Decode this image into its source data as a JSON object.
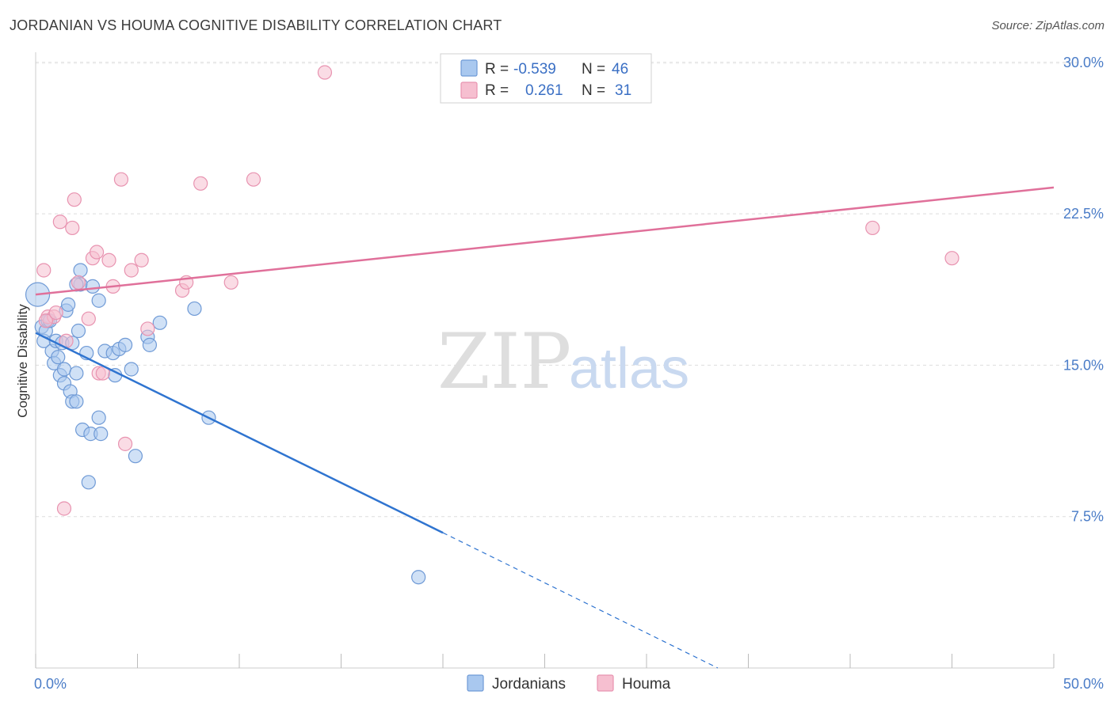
{
  "title": "JORDANIAN VS HOUMA COGNITIVE DISABILITY CORRELATION CHART",
  "source": "Source: ZipAtlas.com",
  "watermark": {
    "zip": "ZIP",
    "atlas": "atlas"
  },
  "colors": {
    "blue_fill": "#a9c8ef",
    "blue_stroke": "#6f9ad6",
    "blue_line": "#2f74d0",
    "pink_fill": "#f6bfd0",
    "pink_stroke": "#e893b0",
    "pink_line": "#e0709a",
    "grid": "#dddddd",
    "tick_text": "#4a7cc7"
  },
  "legend": {
    "rows": [
      {
        "r_label": "R =",
        "r_value": "-0.539",
        "n_label": "N =",
        "n_value": "46"
      },
      {
        "r_label": "R =",
        "r_value": "0.261",
        "n_label": "N =",
        "n_value": "31"
      }
    ]
  },
  "chart_data": {
    "type": "scatter",
    "title": "JORDANIAN VS HOUMA COGNITIVE DISABILITY CORRELATION CHART",
    "xlabel": "",
    "ylabel": "Cognitive Disability",
    "xlim": [
      0,
      50
    ],
    "ylim": [
      0,
      30.5
    ],
    "x_tick_labels": [
      "0.0%",
      "50.0%"
    ],
    "y_ticks": [
      7.5,
      15.0,
      22.5,
      30.0
    ],
    "y_tick_labels": [
      "7.5%",
      "15.0%",
      "22.5%",
      "30.0%"
    ],
    "grid": true,
    "legend_bottom": [
      "Jordanians",
      "Houma"
    ],
    "series": [
      {
        "name": "Jordanians",
        "r": -0.539,
        "n": 46,
        "points": [
          [
            0.1,
            18.5
          ],
          [
            0.3,
            16.9
          ],
          [
            0.4,
            16.2
          ],
          [
            0.5,
            16.7
          ],
          [
            0.6,
            17.2
          ],
          [
            0.7,
            17.2
          ],
          [
            0.8,
            15.7
          ],
          [
            0.9,
            15.1
          ],
          [
            1.0,
            16.2
          ],
          [
            1.1,
            15.4
          ],
          [
            1.2,
            14.5
          ],
          [
            1.3,
            16.1
          ],
          [
            1.4,
            14.1
          ],
          [
            1.4,
            14.8
          ],
          [
            1.5,
            17.7
          ],
          [
            1.6,
            18.0
          ],
          [
            1.7,
            13.7
          ],
          [
            1.8,
            16.1
          ],
          [
            1.8,
            13.2
          ],
          [
            2.0,
            13.2
          ],
          [
            2.0,
            14.6
          ],
          [
            2.1,
            16.7
          ],
          [
            2.2,
            19.0
          ],
          [
            2.3,
            11.8
          ],
          [
            2.5,
            15.6
          ],
          [
            2.6,
            9.2
          ],
          [
            2.7,
            11.6
          ],
          [
            2.8,
            18.9
          ],
          [
            3.1,
            18.2
          ],
          [
            3.1,
            12.4
          ],
          [
            3.2,
            11.6
          ],
          [
            3.4,
            15.7
          ],
          [
            3.8,
            15.6
          ],
          [
            3.9,
            14.5
          ],
          [
            4.1,
            15.8
          ],
          [
            4.4,
            16.0
          ],
          [
            4.7,
            14.8
          ],
          [
            4.9,
            10.5
          ],
          [
            5.5,
            16.4
          ],
          [
            5.6,
            16.0
          ],
          [
            6.1,
            17.1
          ],
          [
            7.8,
            17.8
          ],
          [
            8.5,
            12.4
          ],
          [
            2.0,
            19.0
          ],
          [
            2.2,
            19.7
          ],
          [
            18.8,
            4.5
          ]
        ]
      },
      {
        "name": "Houma",
        "r": 0.261,
        "n": 31,
        "points": [
          [
            0.4,
            19.7
          ],
          [
            0.6,
            17.4
          ],
          [
            0.9,
            17.4
          ],
          [
            1.2,
            22.1
          ],
          [
            1.4,
            7.9
          ],
          [
            1.5,
            16.2
          ],
          [
            1.8,
            21.8
          ],
          [
            1.9,
            23.2
          ],
          [
            2.1,
            19.1
          ],
          [
            2.6,
            17.3
          ],
          [
            2.8,
            20.3
          ],
          [
            3.0,
            20.6
          ],
          [
            3.1,
            14.6
          ],
          [
            3.3,
            14.6
          ],
          [
            3.6,
            20.2
          ],
          [
            3.8,
            18.9
          ],
          [
            4.2,
            24.2
          ],
          [
            4.4,
            11.1
          ],
          [
            4.7,
            19.7
          ],
          [
            5.2,
            20.2
          ],
          [
            5.5,
            16.8
          ],
          [
            7.2,
            18.7
          ],
          [
            7.4,
            19.1
          ],
          [
            8.1,
            24.0
          ],
          [
            9.6,
            19.1
          ],
          [
            10.7,
            24.2
          ],
          [
            14.2,
            29.5
          ],
          [
            41.1,
            21.8
          ],
          [
            45.0,
            20.3
          ],
          [
            0.5,
            17.2
          ],
          [
            1.0,
            17.6
          ]
        ]
      }
    ],
    "trend_lines": [
      {
        "series": "Jordanians",
        "solid": [
          [
            0,
            16.6
          ],
          [
            20,
            6.7
          ]
        ],
        "dashed": [
          [
            20,
            6.7
          ],
          [
            33.5,
            0
          ]
        ]
      },
      {
        "series": "Houma",
        "solid": [
          [
            0,
            18.5
          ],
          [
            50,
            23.8
          ]
        ]
      }
    ]
  }
}
